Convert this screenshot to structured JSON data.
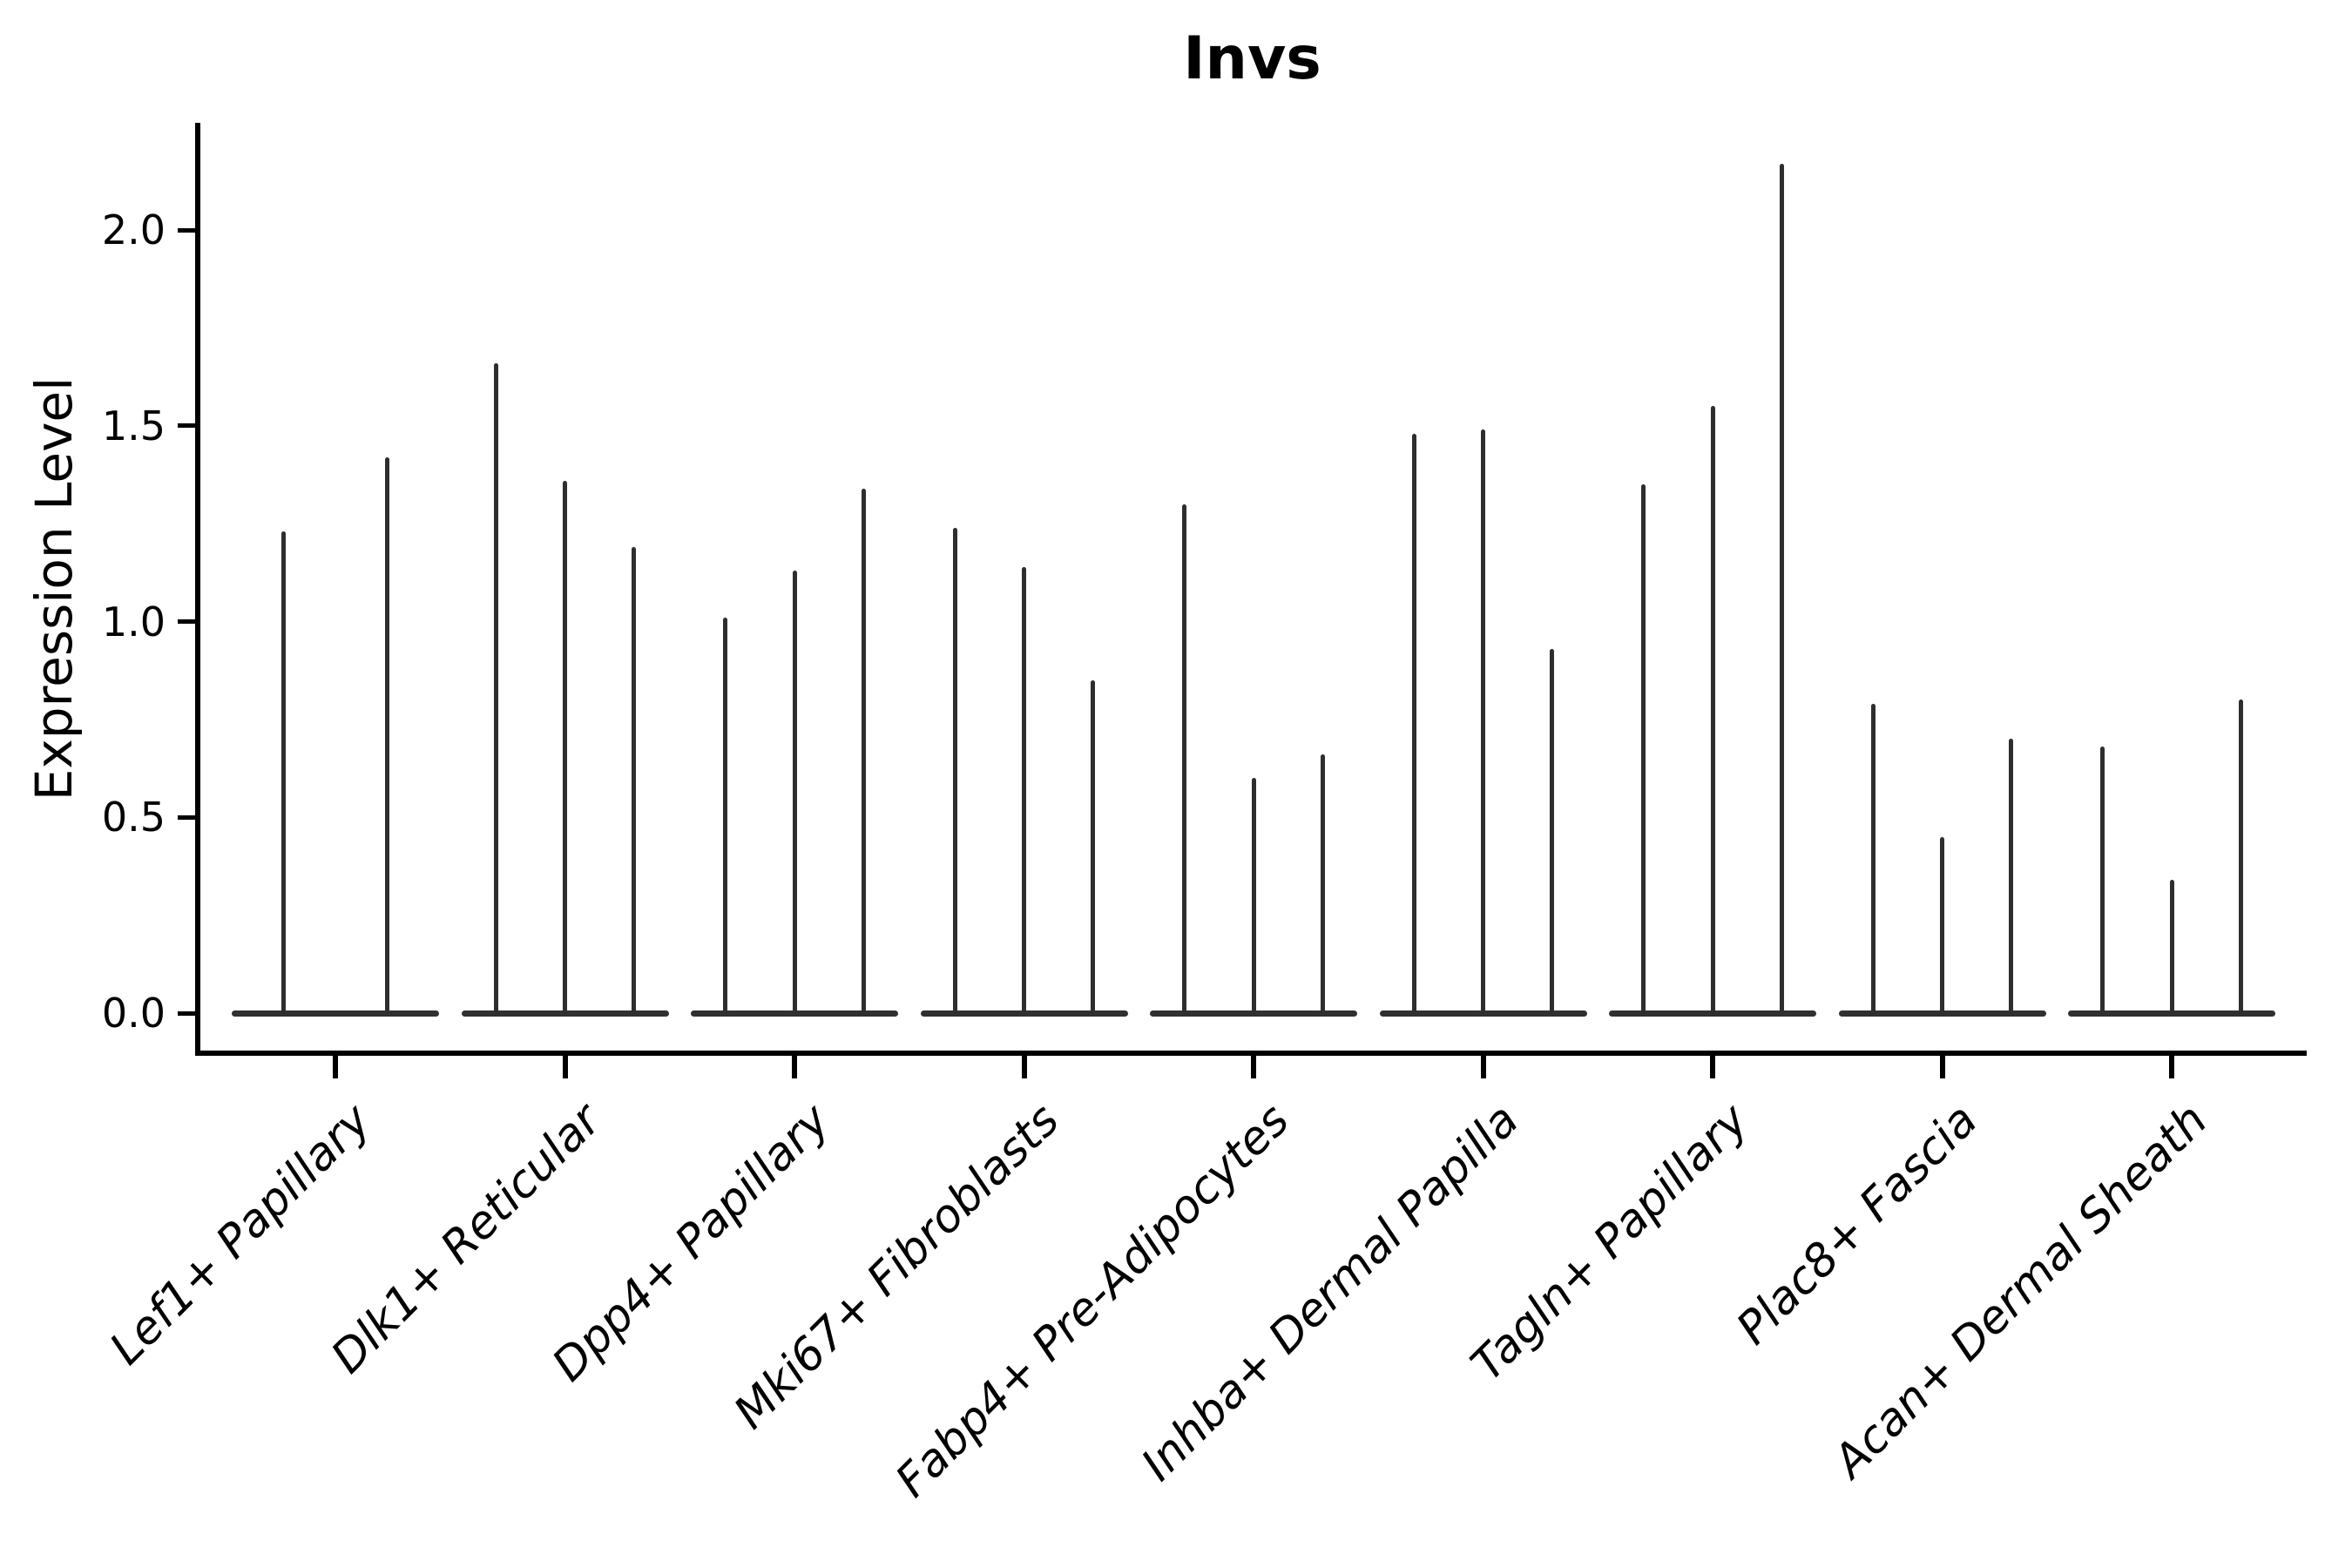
{
  "title": "Invs",
  "ylabel": "Expression Level",
  "colors": {
    "line": "#2e2e2e",
    "axis": "#000000",
    "background": "#ffffff"
  },
  "chart_data": {
    "type": "violin",
    "title": "Invs",
    "xlabel": "",
    "ylabel": "Expression Level",
    "ylim": [
      0,
      2.28
    ],
    "grid": false,
    "legend": "none",
    "description": "Thin max-expression violin spikes per cluster; each category shows 2-3 violins rising from a shared zero baseline",
    "yticks": [
      {
        "value": 0.0,
        "label": "0.0"
      },
      {
        "value": 0.5,
        "label": "0.5"
      },
      {
        "value": 1.0,
        "label": "1.0"
      },
      {
        "value": 1.5,
        "label": "1.5"
      },
      {
        "value": 2.0,
        "label": "2.0"
      }
    ],
    "categories": [
      {
        "label": "Lef1+ Papillary",
        "violin_max_values": [
          1.23,
          1.42
        ]
      },
      {
        "label": "Dlk1+ Reticular",
        "violin_max_values": [
          1.66,
          1.36,
          1.19
        ]
      },
      {
        "label": "Dpp4+ Papillary",
        "violin_max_values": [
          1.01,
          1.13,
          1.34
        ]
      },
      {
        "label": "Mki67+ Fibroblasts",
        "violin_max_values": [
          1.24,
          1.14,
          0.85
        ]
      },
      {
        "label": "Fabp4+ Pre-Adipocytes",
        "violin_max_values": [
          1.3,
          0.6,
          0.66
        ]
      },
      {
        "label": "Inhba+ Dermal Papilla",
        "violin_max_values": [
          1.48,
          1.49,
          0.93
        ]
      },
      {
        "label": "Tagln+ Papillary",
        "violin_max_values": [
          1.35,
          1.55,
          2.17
        ]
      },
      {
        "label": "Plac8+ Fascia",
        "violin_max_values": [
          0.79,
          0.45,
          0.7
        ]
      },
      {
        "label": "Acan+ Dermal Sheath",
        "violin_max_values": [
          0.68,
          0.34,
          0.8
        ]
      }
    ]
  }
}
